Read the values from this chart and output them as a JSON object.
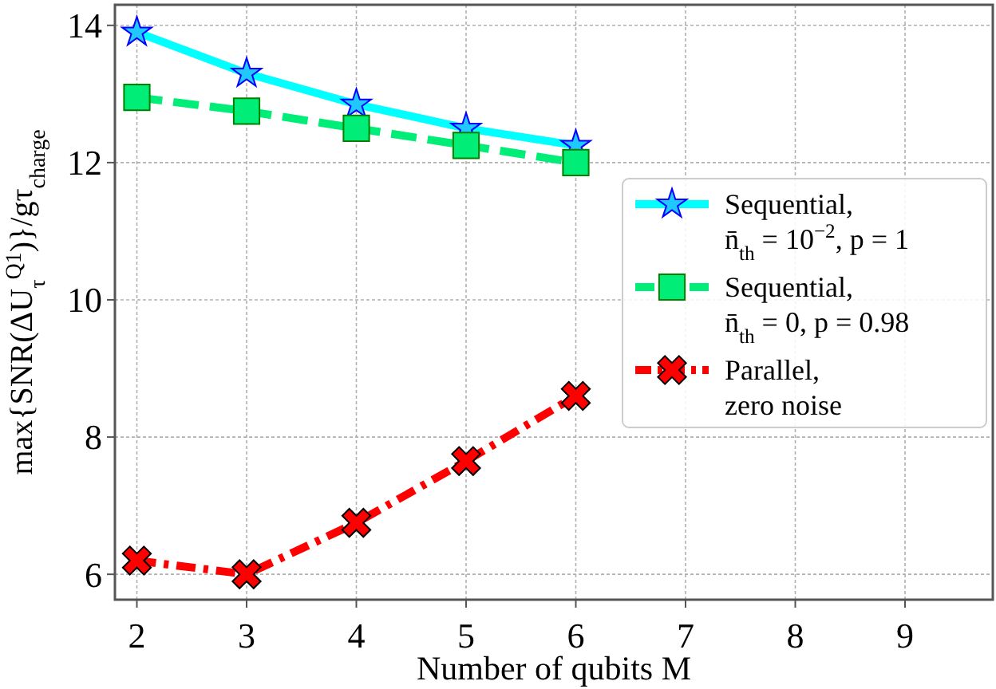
{
  "chart_data": {
    "type": "line",
    "xlabel": "Number of qubits M",
    "ylabel": "max{SNR(ΔU$_{τ}$$^{Q1}$)}/gτ$_{charge}$",
    "x": [
      2,
      3,
      4,
      5,
      6
    ],
    "xlim": [
      1.8,
      9.8
    ],
    "xticks": [
      2,
      3,
      4,
      5,
      6,
      7,
      8,
      9
    ],
    "ylim": [
      5.63,
      14.3
    ],
    "yticks": [
      6,
      8,
      10,
      12,
      14
    ],
    "grid": true,
    "legend": "right",
    "series": [
      {
        "name": "Sequential, n̄$_{th}$ = 10$^{−2}$, p = 1",
        "color": "#00ffff",
        "values": [
          13.9,
          13.3,
          12.85,
          12.5,
          12.25
        ],
        "marker": "star",
        "line_style": "solid"
      },
      {
        "name": "Sequential, n̄$_{th}$ = 0, p = 0.98",
        "color": "#00ee77",
        "values": [
          12.95,
          12.75,
          12.5,
          12.25,
          12.0
        ],
        "marker": "square",
        "line_style": "dashed"
      },
      {
        "name": "Parallel, zero noise",
        "color": "#ff0000",
        "values": [
          6.2,
          6.0,
          6.75,
          7.65,
          8.6
        ],
        "marker": "cross",
        "line_style": "dashdot"
      }
    ]
  }
}
